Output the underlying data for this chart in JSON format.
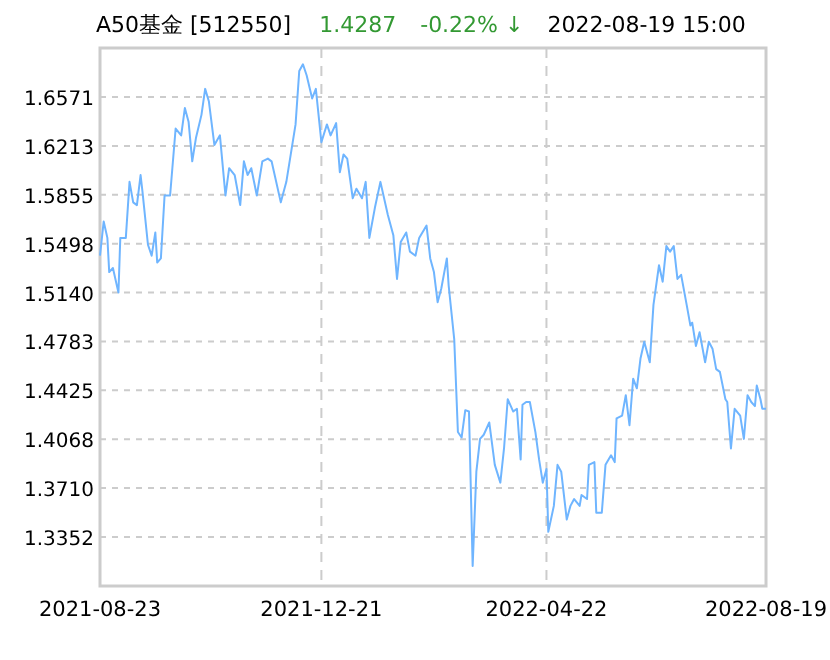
{
  "chart_data": {
    "type": "line",
    "title": "A50基金 [512550]",
    "annotations": [
      "1.4287",
      "-0.22% ↓",
      "2022-08-19 15:00"
    ],
    "xlim": [
      "2021-08-23",
      "2022-08-19"
    ],
    "xticks": [
      "2021-08-23",
      "2021-12-21",
      "2022-04-22",
      "2022-08-19"
    ],
    "ylim": [
      1.2994,
      1.6929
    ],
    "yticks": [
      1.3352,
      {
        "value": 1.371,
        "label": "1.3710"
      },
      1.4068,
      1.4425,
      1.4783,
      {
        "value": 1.514,
        "label": "1.5140"
      },
      1.5498,
      1.5855,
      1.6213,
      1.6571
    ],
    "grid": true,
    "marker": "none",
    "line_style": "solid",
    "series": [
      {
        "color": "#6fb5ff",
        "x": [
          "2021-08-23",
          "2021-08-25",
          "2021-08-27",
          "2021-08-28",
          "2021-08-30",
          "2021-09-02",
          "2021-09-03",
          "2021-09-06",
          "2021-09-08",
          "2021-09-10",
          "2021-09-12",
          "2021-09-14",
          "2021-09-15",
          "2021-09-18",
          "2021-09-20",
          "2021-09-22",
          "2021-09-23",
          "2021-09-25",
          "2021-09-27",
          "2021-09-30",
          "2021-10-03",
          "2021-10-06",
          "2021-10-08",
          "2021-10-10",
          "2021-10-12",
          "2021-10-14",
          "2021-10-17",
          "2021-10-19",
          "2021-10-21",
          "2021-10-24",
          "2021-10-27",
          "2021-10-30",
          "2021-11-01",
          "2021-11-04",
          "2021-11-07",
          "2021-11-09",
          "2021-11-11",
          "2021-11-13",
          "2021-11-16",
          "2021-11-19",
          "2021-11-22",
          "2021-11-24",
          "2021-11-29",
          "2021-12-02",
          "2021-12-07",
          "2021-12-09",
          "2021-12-11",
          "2021-12-13",
          "2021-12-16",
          "2021-12-18",
          "2021-12-20",
          "2021-12-21",
          "2021-12-24",
          "2021-12-26",
          "2021-12-29",
          "2021-12-31",
          "2022-01-02",
          "2022-01-04",
          "2022-01-07",
          "2022-01-09",
          "2022-01-12",
          "2022-01-14",
          "2022-01-16",
          "2022-01-19",
          "2022-01-22",
          "2022-01-26",
          "2022-01-29",
          "2022-01-31",
          "2022-02-02",
          "2022-02-05",
          "2022-02-07",
          "2022-02-10",
          "2022-02-12",
          "2022-02-16",
          "2022-02-18",
          "2022-02-20",
          "2022-02-22",
          "2022-02-24",
          "2022-02-27",
          "2022-02-28",
          "2022-03-03",
          "2022-03-05",
          "2022-03-07",
          "2022-03-09",
          "2022-03-11",
          "2022-03-13",
          "2022-03-15",
          "2022-03-17",
          "2022-03-19",
          "2022-03-22",
          "2022-03-25",
          "2022-03-28",
          "2022-03-30",
          "2022-04-01",
          "2022-04-04",
          "2022-04-06",
          "2022-04-08",
          "2022-04-09",
          "2022-04-11",
          "2022-04-13",
          "2022-04-16",
          "2022-04-18",
          "2022-04-20",
          "2022-04-22",
          "2022-04-23",
          "2022-04-26",
          "2022-04-28",
          "2022-04-30",
          "2022-05-03",
          "2022-05-05",
          "2022-05-07",
          "2022-05-10",
          "2022-05-11",
          "2022-05-14",
          "2022-05-15",
          "2022-05-18",
          "2022-05-19",
          "2022-05-22",
          "2022-05-24",
          "2022-05-27",
          "2022-05-29",
          "2022-05-30",
          "2022-06-02",
          "2022-06-04",
          "2022-06-06",
          "2022-06-08",
          "2022-06-10",
          "2022-06-12",
          "2022-06-14",
          "2022-06-17",
          "2022-06-19",
          "2022-06-22",
          "2022-06-24",
          "2022-06-26",
          "2022-06-28",
          "2022-06-30",
          "2022-07-02",
          "2022-07-04",
          "2022-07-07",
          "2022-07-09",
          "2022-07-10",
          "2022-07-12",
          "2022-07-14",
          "2022-07-17",
          "2022-07-19",
          "2022-07-21",
          "2022-07-23",
          "2022-07-25",
          "2022-07-28",
          "2022-07-29",
          "2022-07-31",
          "2022-08-02",
          "2022-08-05",
          "2022-08-07",
          "2022-08-09",
          "2022-08-11",
          "2022-08-13",
          "2022-08-14",
          "2022-08-16",
          "2022-08-17",
          "2022-08-19"
        ],
        "values": [
          1.541,
          1.566,
          1.554,
          1.529,
          1.532,
          1.514,
          1.554,
          1.554,
          1.595,
          1.58,
          1.578,
          1.6,
          1.588,
          1.549,
          1.541,
          1.558,
          1.536,
          1.539,
          1.585,
          1.585,
          1.634,
          1.629,
          1.649,
          1.639,
          1.61,
          1.627,
          1.644,
          1.663,
          1.654,
          1.622,
          1.629,
          1.585,
          1.605,
          1.6,
          1.578,
          1.61,
          1.6,
          1.605,
          1.585,
          1.61,
          1.612,
          1.61,
          1.58,
          1.595,
          1.637,
          1.676,
          1.681,
          1.673,
          1.656,
          1.663,
          1.637,
          1.624,
          1.637,
          1.629,
          1.638,
          1.602,
          1.615,
          1.612,
          1.583,
          1.59,
          1.583,
          1.595,
          1.554,
          1.576,
          1.595,
          1.571,
          1.556,
          1.524,
          1.551,
          1.558,
          1.544,
          1.541,
          1.554,
          1.563,
          1.539,
          1.529,
          1.507,
          1.517,
          1.539,
          1.519,
          1.48,
          1.412,
          1.408,
          1.428,
          1.427,
          1.314,
          1.383,
          1.407,
          1.41,
          1.419,
          1.388,
          1.375,
          1.4,
          1.436,
          1.427,
          1.429,
          1.392,
          1.432,
          1.434,
          1.434,
          1.412,
          1.392,
          1.375,
          1.385,
          1.339,
          1.358,
          1.388,
          1.383,
          1.348,
          1.358,
          1.363,
          1.358,
          1.366,
          1.363,
          1.388,
          1.39,
          1.353,
          1.353,
          1.388,
          1.395,
          1.39,
          1.422,
          1.424,
          1.439,
          1.417,
          1.451,
          1.444,
          1.466,
          1.478,
          1.463,
          1.505,
          1.534,
          1.522,
          1.548,
          1.544,
          1.548,
          1.524,
          1.527,
          1.505,
          1.49,
          1.492,
          1.475,
          1.485,
          1.463,
          1.478,
          1.473,
          1.458,
          1.456,
          1.436,
          1.434,
          1.4,
          1.429,
          1.424,
          1.407,
          1.439,
          1.434,
          1.431,
          1.446,
          1.436,
          1.429,
          1.429
        ]
      }
    ]
  }
}
